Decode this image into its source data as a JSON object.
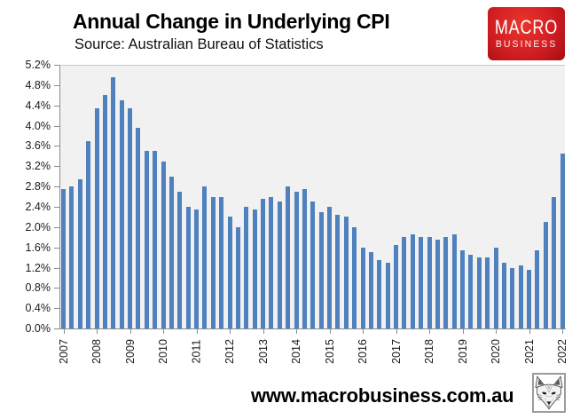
{
  "header": {
    "title": "Annual Change in Underlying CPI",
    "subtitle": "Source: Australian Bureau of Statistics"
  },
  "logo": {
    "line1": "MACRO",
    "line2": "BUSINESS",
    "bg_color": "#d21e22",
    "text_color": "#ffffff"
  },
  "footer": {
    "url": "www.macrobusiness.com.au",
    "wolf_icon": "wolf-head-line-art"
  },
  "chart_data": {
    "type": "bar",
    "title": "Annual Change in Underlying CPI",
    "subtitle": "Source: Australian Bureau of Statistics",
    "frequency": "quarterly",
    "start_period": "2007-Q1",
    "end_period": "2022-Q1",
    "x_tick_labels": [
      "2007",
      "2008",
      "2009",
      "2010",
      "2011",
      "2012",
      "2013",
      "2014",
      "2015",
      "2016",
      "2017",
      "2018",
      "2019",
      "2020",
      "2021",
      "2022"
    ],
    "values": [
      2.75,
      2.8,
      2.95,
      3.7,
      4.35,
      4.6,
      4.95,
      4.5,
      4.35,
      3.95,
      3.5,
      3.5,
      3.3,
      3.0,
      2.7,
      2.4,
      2.35,
      2.8,
      2.6,
      2.6,
      2.2,
      2.0,
      2.4,
      2.35,
      2.55,
      2.6,
      2.5,
      2.8,
      2.7,
      2.75,
      2.5,
      2.3,
      2.4,
      2.25,
      2.2,
      2.0,
      1.6,
      1.5,
      1.35,
      1.3,
      1.65,
      1.8,
      1.85,
      1.8,
      1.8,
      1.75,
      1.8,
      1.85,
      1.55,
      1.45,
      1.4,
      1.4,
      1.6,
      1.3,
      1.2,
      1.25,
      1.15,
      1.55,
      2.1,
      2.6,
      3.45
    ],
    "y_tick_labels": [
      "0.0%",
      "0.4%",
      "0.8%",
      "1.2%",
      "1.6%",
      "2.0%",
      "2.4%",
      "2.8%",
      "3.2%",
      "3.6%",
      "4.0%",
      "4.4%",
      "4.8%",
      "5.2%"
    ],
    "ylim": [
      0,
      5.2
    ],
    "y_step": 0.4,
    "ylabel": "",
    "xlabel": "",
    "grid": false,
    "legend": "none",
    "bar_color": "#4e81bd",
    "plot_bg_color": "#f1f1f1",
    "axis_color": "#8c8c8c"
  }
}
